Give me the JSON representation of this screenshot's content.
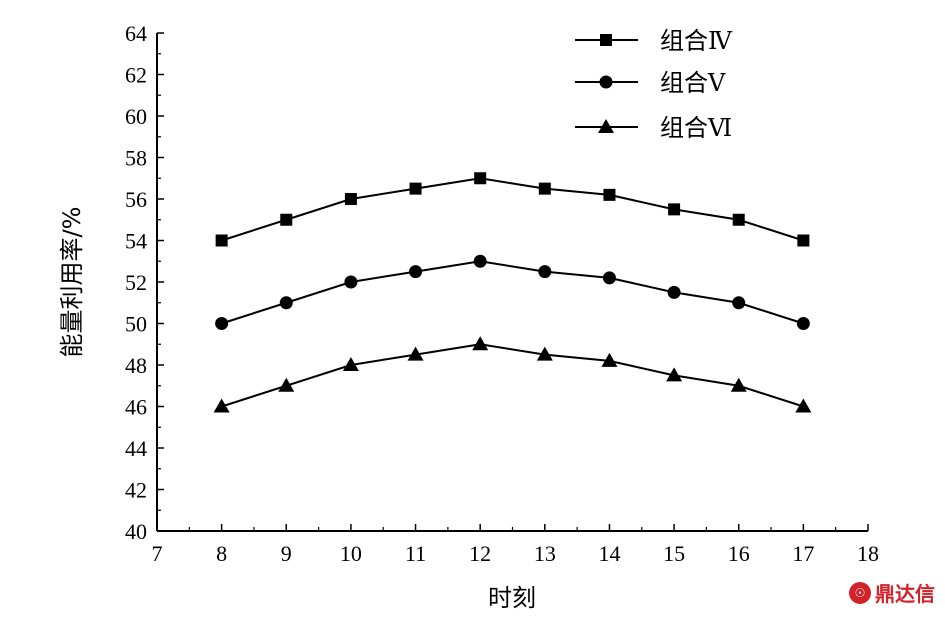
{
  "chart_data": {
    "type": "line",
    "x": [
      8,
      9,
      10,
      11,
      12,
      13,
      14,
      15,
      16,
      17
    ],
    "series": [
      {
        "name": "组合Ⅳ",
        "marker": "square",
        "values": [
          54,
          55,
          56,
          56.5,
          57,
          56.5,
          56.2,
          55.5,
          55,
          54
        ]
      },
      {
        "name": "组合Ⅴ",
        "marker": "circle",
        "values": [
          50,
          51,
          52,
          52.5,
          53,
          52.5,
          52.2,
          51.5,
          51,
          50
        ]
      },
      {
        "name": "组合Ⅵ",
        "marker": "triangle",
        "values": [
          46,
          47,
          48,
          48.5,
          49,
          48.5,
          48.2,
          47.5,
          47,
          46
        ]
      }
    ],
    "xlabel": "时刻",
    "ylabel": "能量利用率/%",
    "xlim": [
      7,
      18
    ],
    "ylim": [
      40,
      64
    ],
    "xticks": [
      7,
      8,
      9,
      10,
      11,
      12,
      13,
      14,
      15,
      16,
      17,
      18
    ],
    "yticks": [
      40,
      42,
      44,
      46,
      48,
      50,
      52,
      54,
      56,
      58,
      60,
      62,
      64
    ],
    "grid": false,
    "legend_position": "top-center",
    "line_color": "#000000"
  },
  "watermark": {
    "text": "鼎达信",
    "logo_color": "#d2222a"
  }
}
